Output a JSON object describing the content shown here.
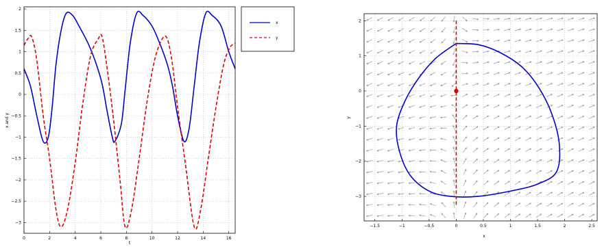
{
  "chart_data": [
    {
      "type": "line",
      "xlabel": "t",
      "ylabel": "x and y",
      "xlim": [
        0,
        16.5
      ],
      "ylim": [
        -3.25,
        2.05
      ],
      "xticks": [
        "0",
        "2",
        "4",
        "6",
        "8",
        "10",
        "12",
        "14",
        "16"
      ],
      "yticks": [
        "2",
        "1.5",
        "1",
        "0.5",
        "0",
        "−0.5",
        "−1",
        "−1.5",
        "−2",
        "−2.5",
        "−3"
      ],
      "grid": true,
      "legend_position": "right",
      "series": [
        {
          "name": "x",
          "color": "#0000cc",
          "style": "solid",
          "points": [
            [
              0,
              0.6
            ],
            [
              0.5,
              0.2
            ],
            [
              1.0,
              -0.5
            ],
            [
              1.5,
              -1.1
            ],
            [
              1.9,
              -1.0
            ],
            [
              2.2,
              -0.3
            ],
            [
              2.5,
              0.7
            ],
            [
              2.9,
              1.5
            ],
            [
              3.3,
              1.9
            ],
            [
              3.8,
              1.85
            ],
            [
              4.3,
              1.6
            ],
            [
              5.0,
              1.2
            ],
            [
              5.6,
              0.75
            ],
            [
              6.1,
              0.25
            ],
            [
              6.5,
              -0.4
            ],
            [
              6.9,
              -1.0
            ],
            [
              7.1,
              -1.1
            ],
            [
              7.6,
              -0.7
            ],
            [
              7.9,
              0.1
            ],
            [
              8.3,
              1.2
            ],
            [
              8.8,
              1.9
            ],
            [
              9.3,
              1.85
            ],
            [
              10.0,
              1.6
            ],
            [
              10.6,
              1.2
            ],
            [
              11.2,
              0.7
            ],
            [
              11.6,
              0.2
            ],
            [
              12.0,
              -0.5
            ],
            [
              12.5,
              -1.1
            ],
            [
              12.9,
              -0.8
            ],
            [
              13.3,
              0.2
            ],
            [
              13.7,
              1.2
            ],
            [
              14.2,
              1.9
            ],
            [
              14.7,
              1.85
            ],
            [
              15.4,
              1.6
            ],
            [
              16.0,
              1.0
            ],
            [
              16.5,
              0.6
            ]
          ]
        },
        {
          "name": "y",
          "color": "#dd0000",
          "style": "dashed",
          "points": [
            [
              0,
              1.15
            ],
            [
              0.3,
              1.3
            ],
            [
              0.6,
              1.35
            ],
            [
              1.0,
              0.8
            ],
            [
              1.5,
              -0.5
            ],
            [
              2.0,
              -1.5
            ],
            [
              2.5,
              -2.7
            ],
            [
              2.9,
              -3.1
            ],
            [
              3.4,
              -2.7
            ],
            [
              4.0,
              -1.6
            ],
            [
              4.6,
              -0.2
            ],
            [
              5.2,
              0.9
            ],
            [
              5.8,
              1.3
            ],
            [
              6.1,
              1.35
            ],
            [
              6.5,
              0.6
            ],
            [
              7.0,
              -0.6
            ],
            [
              7.5,
              -2.0
            ],
            [
              7.9,
              -3.1
            ],
            [
              8.4,
              -2.7
            ],
            [
              9.0,
              -1.5
            ],
            [
              9.6,
              -0.2
            ],
            [
              10.2,
              0.8
            ],
            [
              10.8,
              1.3
            ],
            [
              11.2,
              1.3
            ],
            [
              11.6,
              0.7
            ],
            [
              12.0,
              -0.3
            ],
            [
              12.6,
              -1.6
            ],
            [
              13.3,
              -3.1
            ],
            [
              13.8,
              -2.7
            ],
            [
              14.4,
              -1.5
            ],
            [
              15.0,
              -0.3
            ],
            [
              15.6,
              0.7
            ],
            [
              16.1,
              1.1
            ],
            [
              16.5,
              1.2
            ]
          ]
        }
      ]
    },
    {
      "type": "line",
      "xlabel": "x",
      "ylabel": "y",
      "xlim": [
        -1.7,
        2.6
      ],
      "ylim": [
        -3.7,
        2.2
      ],
      "xticks": [
        "−1.5",
        "−1",
        "−0.5",
        "0",
        "0.5",
        "1",
        "1.5",
        "2",
        "2.5"
      ],
      "yticks": [
        "2",
        "1",
        "0",
        "−1",
        "−2",
        "−3"
      ],
      "grid": true,
      "vector_field": true,
      "vector_color": "#999999",
      "equilibrium": {
        "x": 0,
        "y": 0,
        "color": "#dd0000"
      },
      "series": [
        {
          "name": "",
          "color": "#0000cc",
          "style": "solid",
          "points": [
            [
              0,
              1.35
            ],
            [
              0.4,
              1.32
            ],
            [
              0.8,
              1.1
            ],
            [
              1.2,
              0.7
            ],
            [
              1.5,
              0.15
            ],
            [
              1.75,
              -0.6
            ],
            [
              1.9,
              -1.5
            ],
            [
              1.85,
              -2.3
            ],
            [
              1.5,
              -2.65
            ],
            [
              1.0,
              -2.85
            ],
            [
              0.4,
              -3.0
            ],
            [
              -0.1,
              -3.0
            ],
            [
              -0.5,
              -2.85
            ],
            [
              -0.85,
              -2.4
            ],
            [
              -1.05,
              -1.7
            ],
            [
              -1.1,
              -1.0
            ],
            [
              -0.95,
              -0.3
            ],
            [
              -0.7,
              0.35
            ],
            [
              -0.4,
              0.9
            ],
            [
              -0.1,
              1.25
            ],
            [
              0,
              1.35
            ]
          ]
        },
        {
          "name": "",
          "color": "#dd0000",
          "style": "dashed",
          "points": [
            [
              0,
              2.0
            ],
            [
              0,
              -3.25
            ]
          ]
        }
      ]
    }
  ]
}
